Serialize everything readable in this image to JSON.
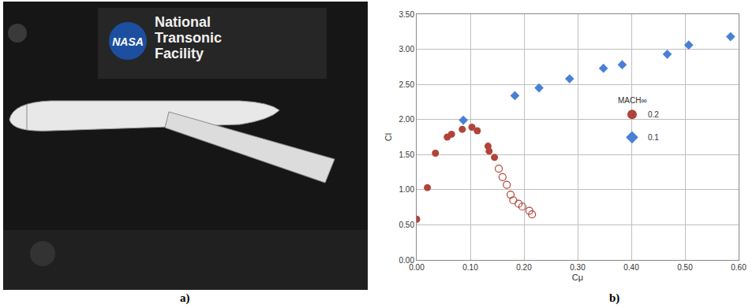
{
  "figure_labels": [
    "a)",
    "b)"
  ],
  "photo": {
    "logo_text": "NASA",
    "caption": [
      "National",
      "Transonic",
      "Facility"
    ]
  },
  "chart_data": {
    "type": "scatter",
    "x_label": "Cμ",
    "y_label": "Cl",
    "legend_title": "MACH∞",
    "legend": "right",
    "grid": true,
    "xlim": [
      0,
      0.6
    ],
    "xticks": [
      {
        "value": 0,
        "label": "0.00"
      },
      {
        "value": 0.1,
        "label": "0.10"
      },
      {
        "value": 0.2,
        "label": "0.20"
      },
      {
        "value": 0.3,
        "label": "0.30"
      },
      {
        "value": 0.4,
        "label": "0.40"
      },
      {
        "value": 0.5,
        "label": "0.50"
      },
      {
        "value": 0.6,
        "label": "0.60"
      }
    ],
    "ylim": [
      0,
      3.5
    ],
    "yticks": [
      {
        "value": 0,
        "label": "0.00"
      },
      {
        "value": 0.5,
        "label": "0.50"
      },
      {
        "value": 1,
        "label": "1.00"
      },
      {
        "value": 1.5,
        "label": "1.50"
      },
      {
        "value": 2,
        "label": "2.00"
      },
      {
        "value": 2.5,
        "label": "2.50"
      },
      {
        "value": 3,
        "label": "3.00"
      },
      {
        "value": 3.5,
        "label": "3.50"
      }
    ],
    "series": [
      {
        "name": "0.2",
        "color": "#b0443a",
        "marker": "circle",
        "x": [
          0.0,
          0.02,
          0.035,
          0.057,
          0.065,
          0.085,
          0.103,
          0.113,
          0.133,
          0.135,
          0.145
        ],
        "values": [
          0.58,
          1.03,
          1.52,
          1.75,
          1.79,
          1.86,
          1.89,
          1.84,
          1.62,
          1.55,
          1.46
        ]
      },
      {
        "name": "0.2",
        "color": "#b0443a",
        "marker": "circle-open",
        "x": [
          0.153,
          0.16,
          0.168,
          0.175,
          0.18,
          0.19,
          0.197,
          0.21,
          0.215
        ],
        "values": [
          1.3,
          1.18,
          1.07,
          0.93,
          0.85,
          0.8,
          0.76,
          0.7,
          0.65
        ]
      },
      {
        "name": "0.1",
        "color": "#4a7fd6",
        "marker": "diamond",
        "x": [
          0.087,
          0.183,
          0.228,
          0.285,
          0.348,
          0.383,
          0.467,
          0.507,
          0.585
        ],
        "values": [
          1.99,
          2.34,
          2.45,
          2.58,
          2.73,
          2.78,
          2.93,
          3.06,
          3.18
        ]
      }
    ]
  }
}
